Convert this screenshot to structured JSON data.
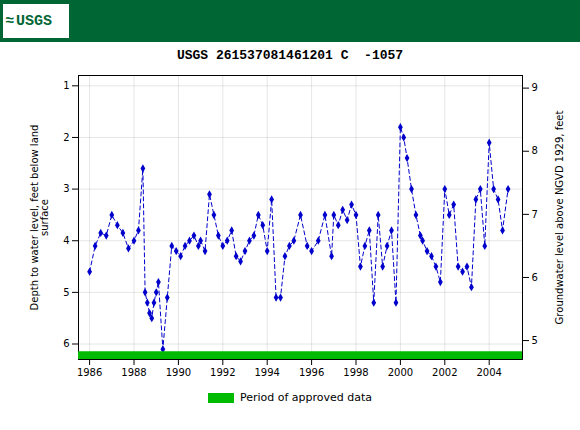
{
  "chart_data": {
    "type": "line",
    "title": "USGS 261537081461201 C  -1057",
    "annotations": [
      "≈",
      "USGS"
    ],
    "ylabel": "Depth to water level, feet below land\nsurface",
    "y2label": "Groundwater level above NGVD 1929, feet",
    "xlim": [
      1985.5,
      2005.5
    ],
    "xticks": [
      1986,
      1988,
      1990,
      1992,
      1994,
      1996,
      1998,
      2000,
      2002,
      2004
    ],
    "ylim": [
      6.3,
      0.8
    ],
    "yticks": [
      1,
      2,
      3,
      4,
      5,
      6
    ],
    "y2lim": [
      4.7,
      9.2
    ],
    "y2ticks": [
      5,
      6,
      7,
      8,
      9
    ],
    "grid": true,
    "legend": "bottom",
    "color": "#0000CC",
    "marker": "diamond",
    "line_style": "dashed",
    "x": [
      1986.0,
      1986.25,
      1986.5,
      1986.75,
      1987.0,
      1987.25,
      1987.5,
      1987.75,
      1988.0,
      1988.2,
      1988.4,
      1988.5,
      1988.6,
      1988.7,
      1988.8,
      1988.9,
      1989.0,
      1989.1,
      1989.3,
      1989.5,
      1989.7,
      1989.9,
      1990.1,
      1990.3,
      1990.5,
      1990.7,
      1990.9,
      1991.0,
      1991.2,
      1991.4,
      1991.6,
      1991.8,
      1992.0,
      1992.2,
      1992.4,
      1992.6,
      1992.8,
      1993.0,
      1993.2,
      1993.4,
      1993.6,
      1993.8,
      1994.0,
      1994.2,
      1994.4,
      1994.6,
      1994.8,
      1995.0,
      1995.2,
      1995.5,
      1995.8,
      1996.0,
      1996.3,
      1996.6,
      1996.9,
      1997.0,
      1997.2,
      1997.4,
      1997.6,
      1997.8,
      1998.0,
      1998.2,
      1998.4,
      1998.6,
      1998.8,
      1999.0,
      1999.2,
      1999.4,
      1999.6,
      1999.8,
      2000.0,
      2000.15,
      2000.3,
      2000.5,
      2000.7,
      2000.9,
      2001.0,
      2001.2,
      2001.4,
      2001.6,
      2001.8,
      2002.0,
      2002.2,
      2002.4,
      2002.6,
      2002.8,
      2003.0,
      2003.2,
      2003.4,
      2003.6,
      2003.8,
      2004.0,
      2004.2,
      2004.4,
      2004.6,
      2004.85
    ],
    "values": [
      4.6,
      4.1,
      3.85,
      3.9,
      3.5,
      3.7,
      3.85,
      4.15,
      4.0,
      3.8,
      2.6,
      5.0,
      5.2,
      5.4,
      5.5,
      5.2,
      5.0,
      4.8,
      6.1,
      5.1,
      4.1,
      4.2,
      4.3,
      4.1,
      4.0,
      3.9,
      4.1,
      4.0,
      4.2,
      3.1,
      3.5,
      3.9,
      4.1,
      4.0,
      3.8,
      4.3,
      4.4,
      4.2,
      4.0,
      3.9,
      3.5,
      3.7,
      4.2,
      3.2,
      5.1,
      5.1,
      4.3,
      4.1,
      4.0,
      3.5,
      4.1,
      4.2,
      4.0,
      3.5,
      4.3,
      3.5,
      3.7,
      3.4,
      3.6,
      3.3,
      3.5,
      4.5,
      4.1,
      3.8,
      5.2,
      3.5,
      4.5,
      4.1,
      3.8,
      5.2,
      1.8,
      2.0,
      2.4,
      3.0,
      3.5,
      3.9,
      4.0,
      4.2,
      4.3,
      4.5,
      4.8,
      3.0,
      3.5,
      3.3,
      4.5,
      4.6,
      4.5,
      4.9,
      3.2,
      3.0,
      4.1,
      2.1,
      3.0,
      3.2,
      3.8,
      3.0
    ],
    "approved_bar": {
      "name": "Period of approved data",
      "color": "#00BB00",
      "x": [
        1985.5,
        2005.5
      ],
      "y": [
        6.15,
        6.3
      ]
    }
  }
}
